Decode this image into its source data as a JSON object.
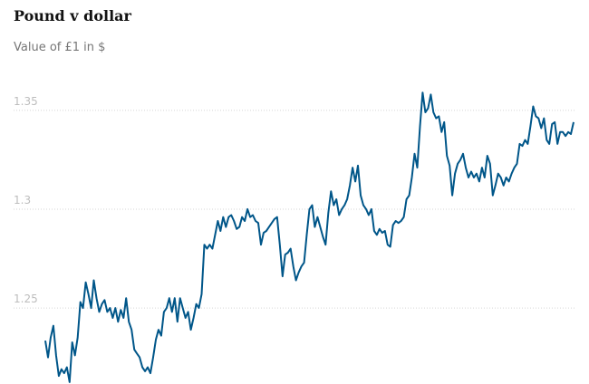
{
  "chart_data": {
    "type": "line",
    "title": "Pound v dollar",
    "subtitle": "Value of £1 in $",
    "color": "#005689",
    "ylim": [
      1.212,
      1.36
    ],
    "yticks": [
      1.25,
      1.3,
      1.35
    ],
    "grid": true,
    "values": [
      1.2335,
      1.225,
      1.235,
      1.241,
      1.226,
      1.2156,
      1.219,
      1.217,
      1.22,
      1.2125,
      1.2326,
      1.226,
      1.235,
      1.253,
      1.25,
      1.263,
      1.257,
      1.25,
      1.264,
      1.255,
      1.248,
      1.252,
      1.254,
      1.248,
      1.25,
      1.245,
      1.25,
      1.243,
      1.249,
      1.245,
      1.255,
      1.243,
      1.239,
      1.229,
      1.227,
      1.225,
      1.22,
      1.218,
      1.22,
      1.217,
      1.225,
      1.234,
      1.239,
      1.236,
      1.248,
      1.25,
      1.255,
      1.248,
      1.255,
      1.243,
      1.255,
      1.25,
      1.245,
      1.248,
      1.239,
      1.245,
      1.252,
      1.25,
      1.257,
      1.282,
      1.28,
      1.282,
      1.28,
      1.287,
      1.294,
      1.289,
      1.296,
      1.291,
      1.296,
      1.297,
      1.294,
      1.29,
      1.291,
      1.296,
      1.294,
      1.3,
      1.296,
      1.297,
      1.294,
      1.293,
      1.282,
      1.288,
      1.289,
      1.291,
      1.293,
      1.295,
      1.296,
      1.282,
      1.266,
      1.277,
      1.278,
      1.28,
      1.271,
      1.264,
      1.268,
      1.271,
      1.273,
      1.287,
      1.3,
      1.302,
      1.291,
      1.296,
      1.291,
      1.286,
      1.282,
      1.298,
      1.309,
      1.302,
      1.305,
      1.297,
      1.3,
      1.302,
      1.305,
      1.312,
      1.321,
      1.314,
      1.322,
      1.307,
      1.302,
      1.3,
      1.297,
      1.3,
      1.289,
      1.287,
      1.29,
      1.288,
      1.289,
      1.282,
      1.281,
      1.292,
      1.294,
      1.293,
      1.294,
      1.296,
      1.305,
      1.307,
      1.316,
      1.328,
      1.321,
      1.342,
      1.359,
      1.349,
      1.351,
      1.358,
      1.349,
      1.346,
      1.347,
      1.339,
      1.344,
      1.327,
      1.322,
      1.307,
      1.318,
      1.323,
      1.325,
      1.328,
      1.321,
      1.316,
      1.319,
      1.316,
      1.318,
      1.314,
      1.321,
      1.316,
      1.327,
      1.323,
      1.307,
      1.312,
      1.318,
      1.316,
      1.312,
      1.316,
      1.314,
      1.318,
      1.321,
      1.323,
      1.333,
      1.332,
      1.335,
      1.333,
      1.342,
      1.352,
      1.347,
      1.346,
      1.341,
      1.346,
      1.335,
      1.333,
      1.343,
      1.344,
      1.333,
      1.339,
      1.339,
      1.337,
      1.339,
      1.338,
      1.344
    ]
  }
}
